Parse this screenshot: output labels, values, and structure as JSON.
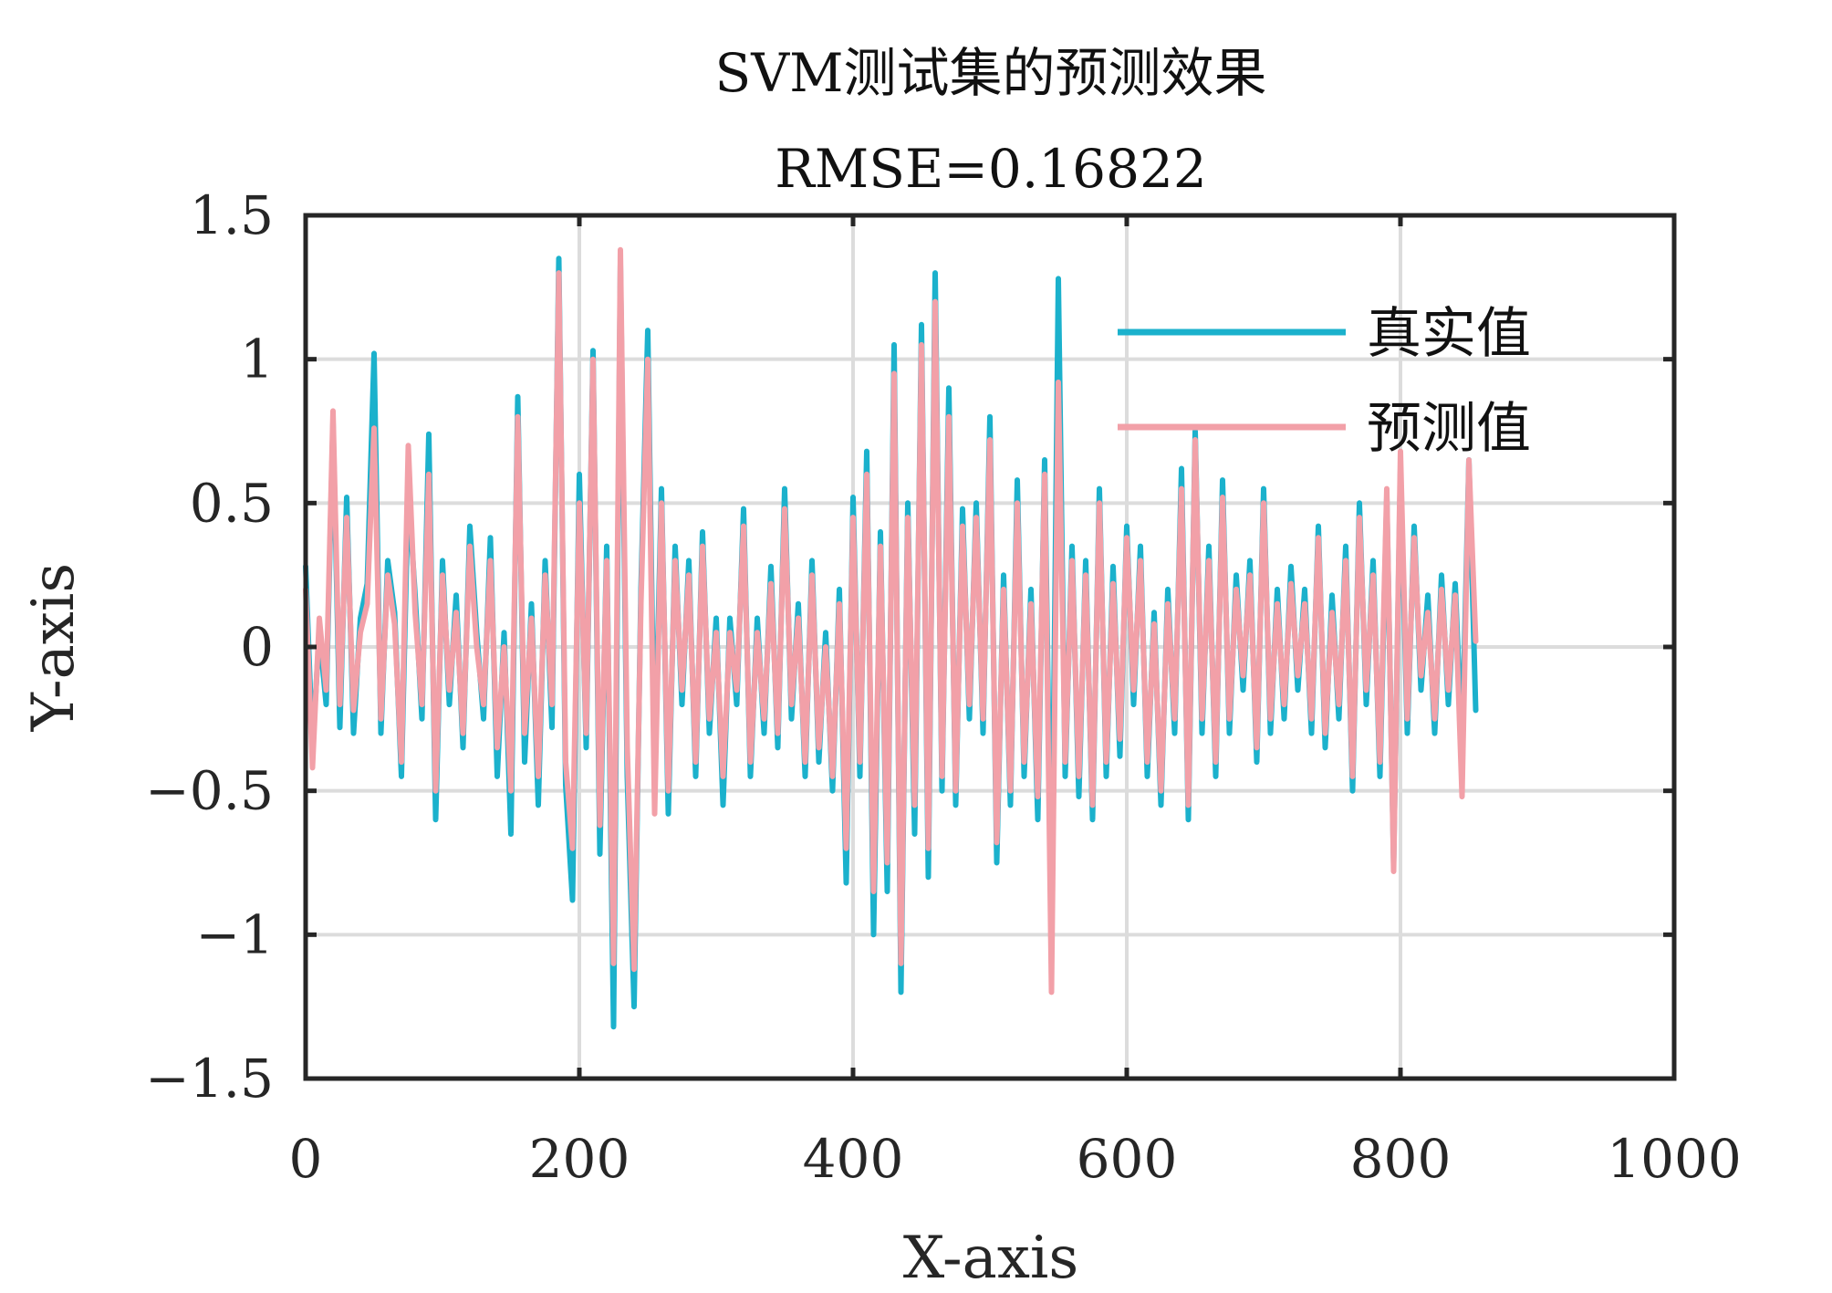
{
  "chart_data": {
    "type": "line",
    "title": "SVM测试集的预测效果",
    "subtitle": "RMSE=0.16822",
    "xlabel": "X-axis",
    "ylabel": "Y-axis",
    "xlim": [
      0,
      1000
    ],
    "ylim": [
      -1.5,
      1.5
    ],
    "grid": true,
    "legend_position": "top-right",
    "x_ticks": [
      0,
      200,
      400,
      600,
      800,
      1000
    ],
    "y_ticks": [
      -1.5,
      -1,
      -0.5,
      0,
      0.5,
      1,
      1.5
    ],
    "x_tick_labels": [
      "0",
      "200",
      "400",
      "600",
      "800",
      "1000"
    ],
    "y_tick_labels": [
      "−1.5",
      "−1",
      "−0.5",
      "0",
      "0.5",
      "1",
      "1.5"
    ],
    "series": [
      {
        "name": "真实值",
        "color": "#1bb1cc",
        "x": [
          0,
          5,
          10,
          15,
          20,
          25,
          30,
          35,
          40,
          45,
          50,
          55,
          60,
          65,
          70,
          75,
          80,
          85,
          90,
          95,
          100,
          105,
          110,
          115,
          120,
          125,
          130,
          135,
          140,
          145,
          150,
          155,
          160,
          165,
          170,
          175,
          180,
          185,
          190,
          195,
          200,
          205,
          210,
          215,
          220,
          225,
          230,
          235,
          240,
          245,
          250,
          255,
          260,
          265,
          270,
          275,
          280,
          285,
          290,
          295,
          300,
          305,
          310,
          315,
          320,
          325,
          330,
          335,
          340,
          345,
          350,
          355,
          360,
          365,
          370,
          375,
          380,
          385,
          390,
          395,
          400,
          405,
          410,
          415,
          420,
          425,
          430,
          435,
          440,
          445,
          450,
          455,
          460,
          465,
          470,
          475,
          480,
          485,
          490,
          495,
          500,
          505,
          510,
          515,
          520,
          525,
          530,
          535,
          540,
          545,
          550,
          555,
          560,
          565,
          570,
          575,
          580,
          585,
          590,
          595,
          600,
          605,
          610,
          615,
          620,
          625,
          630,
          635,
          640,
          645,
          650,
          655,
          660,
          665,
          670,
          675,
          680,
          685,
          690,
          695,
          700,
          705,
          710,
          715,
          720,
          725,
          730,
          735,
          740,
          745,
          750,
          755,
          760,
          765,
          770,
          775,
          780,
          785,
          790,
          795,
          800,
          805,
          810,
          815,
          820,
          825,
          830,
          835,
          840,
          845,
          850,
          855
        ],
        "values": [
          0.28,
          -0.35,
          0.05,
          -0.2,
          0.78,
          -0.28,
          0.52,
          -0.3,
          0.1,
          0.22,
          1.02,
          -0.3,
          0.3,
          0.12,
          -0.45,
          0.55,
          0.18,
          -0.25,
          0.74,
          -0.6,
          0.3,
          -0.2,
          0.18,
          -0.35,
          0.42,
          0.05,
          -0.25,
          0.38,
          -0.45,
          0.05,
          -0.65,
          0.87,
          -0.4,
          0.15,
          -0.55,
          0.3,
          -0.28,
          1.35,
          -0.48,
          -0.88,
          0.6,
          -0.35,
          1.03,
          -0.72,
          0.35,
          -1.32,
          1.33,
          -0.45,
          -1.25,
          0.2,
          1.1,
          -0.45,
          0.55,
          -0.58,
          0.35,
          -0.2,
          0.3,
          -0.45,
          0.4,
          -0.3,
          0.1,
          -0.55,
          0.1,
          -0.2,
          0.48,
          -0.45,
          0.1,
          -0.3,
          0.28,
          -0.35,
          0.55,
          -0.25,
          0.15,
          -0.45,
          0.3,
          -0.4,
          0.05,
          -0.5,
          0.2,
          -0.82,
          0.52,
          -0.45,
          0.68,
          -1.0,
          0.4,
          -0.85,
          1.05,
          -1.2,
          0.5,
          -0.65,
          1.12,
          -0.8,
          1.3,
          -0.5,
          0.9,
          -0.55,
          0.48,
          -0.25,
          0.5,
          -0.3,
          0.8,
          -0.75,
          0.25,
          -0.55,
          0.58,
          -0.45,
          0.2,
          -0.6,
          0.65,
          -0.95,
          1.28,
          -0.45,
          0.35,
          -0.52,
          0.3,
          -0.6,
          0.55,
          -0.45,
          0.28,
          -0.38,
          0.42,
          -0.2,
          0.35,
          -0.45,
          0.12,
          -0.55,
          0.2,
          -0.3,
          0.62,
          -0.6,
          0.75,
          -0.3,
          0.35,
          -0.45,
          0.58,
          -0.3,
          0.25,
          -0.15,
          0.3,
          -0.4,
          0.55,
          -0.3,
          0.2,
          -0.25,
          0.28,
          -0.15,
          0.2,
          -0.3,
          0.42,
          -0.35,
          0.18,
          -0.25,
          0.35,
          -0.5,
          0.5,
          -0.2,
          0.3,
          -0.45,
          0.52,
          -0.75,
          0.62,
          -0.3,
          0.42,
          -0.15,
          0.18,
          -0.3,
          0.25,
          -0.2,
          0.22,
          -0.35,
          0.65,
          -0.22
        ]
      },
      {
        "name": "预测值",
        "color": "#f2a0a8",
        "x": [
          0,
          5,
          10,
          15,
          20,
          25,
          30,
          35,
          40,
          45,
          50,
          55,
          60,
          65,
          70,
          75,
          80,
          85,
          90,
          95,
          100,
          105,
          110,
          115,
          120,
          125,
          130,
          135,
          140,
          145,
          150,
          155,
          160,
          165,
          170,
          175,
          180,
          185,
          190,
          195,
          200,
          205,
          210,
          215,
          220,
          225,
          230,
          235,
          240,
          245,
          250,
          255,
          260,
          265,
          270,
          275,
          280,
          285,
          290,
          295,
          300,
          305,
          310,
          315,
          320,
          325,
          330,
          335,
          340,
          345,
          350,
          355,
          360,
          365,
          370,
          375,
          380,
          385,
          390,
          395,
          400,
          405,
          410,
          415,
          420,
          425,
          430,
          435,
          440,
          445,
          450,
          455,
          460,
          465,
          470,
          475,
          480,
          485,
          490,
          495,
          500,
          505,
          510,
          515,
          520,
          525,
          530,
          535,
          540,
          545,
          550,
          555,
          560,
          565,
          570,
          575,
          580,
          585,
          590,
          595,
          600,
          605,
          610,
          615,
          620,
          625,
          630,
          635,
          640,
          645,
          650,
          655,
          660,
          665,
          670,
          675,
          680,
          685,
          690,
          695,
          700,
          705,
          710,
          715,
          720,
          725,
          730,
          735,
          740,
          745,
          750,
          755,
          760,
          765,
          770,
          775,
          780,
          785,
          790,
          795,
          800,
          805,
          810,
          815,
          820,
          825,
          830,
          835,
          840,
          845,
          850,
          855
        ],
        "values": [
          0.2,
          -0.42,
          0.1,
          -0.15,
          0.82,
          -0.2,
          0.45,
          -0.22,
          0.05,
          0.15,
          0.76,
          -0.25,
          0.25,
          0.08,
          -0.4,
          0.7,
          0.12,
          -0.2,
          0.6,
          -0.5,
          0.25,
          -0.15,
          0.12,
          -0.3,
          0.35,
          0.0,
          -0.2,
          0.3,
          -0.35,
          0.0,
          -0.5,
          0.8,
          -0.3,
          0.1,
          -0.45,
          0.25,
          -0.2,
          1.3,
          -0.4,
          -0.7,
          0.5,
          -0.3,
          1.0,
          -0.62,
          0.3,
          -1.1,
          1.38,
          -0.35,
          -1.12,
          0.15,
          1.0,
          -0.58,
          0.5,
          -0.5,
          0.3,
          -0.15,
          0.25,
          -0.4,
          0.35,
          -0.25,
          0.05,
          -0.45,
          0.05,
          -0.15,
          0.42,
          -0.4,
          0.05,
          -0.25,
          0.22,
          -0.3,
          0.48,
          -0.2,
          0.1,
          -0.4,
          0.25,
          -0.35,
          0.0,
          -0.45,
          0.15,
          -0.7,
          0.45,
          -0.4,
          0.6,
          -0.85,
          0.35,
          -0.75,
          0.95,
          -1.1,
          0.45,
          -0.55,
          1.05,
          -0.7,
          1.2,
          -0.45,
          0.8,
          -0.5,
          0.42,
          -0.2,
          0.45,
          -0.25,
          0.72,
          -0.68,
          0.2,
          -0.5,
          0.5,
          -0.4,
          0.15,
          -0.52,
          0.6,
          -1.2,
          0.92,
          -0.4,
          0.3,
          -0.45,
          0.25,
          -0.55,
          0.5,
          -0.4,
          0.22,
          -0.32,
          0.38,
          -0.15,
          0.3,
          -0.4,
          0.08,
          -0.5,
          0.15,
          -0.25,
          0.55,
          -0.55,
          0.72,
          -0.25,
          0.3,
          -0.4,
          0.52,
          -0.25,
          0.2,
          -0.1,
          0.25,
          -0.35,
          0.5,
          -0.25,
          0.15,
          -0.2,
          0.22,
          -0.1,
          0.15,
          -0.25,
          0.38,
          -0.3,
          0.12,
          -0.2,
          0.3,
          -0.45,
          0.45,
          -0.15,
          0.25,
          -0.4,
          0.55,
          -0.78,
          0.68,
          -0.25,
          0.38,
          -0.1,
          0.12,
          -0.25,
          0.2,
          -0.15,
          0.18,
          -0.52,
          0.65,
          0.02
        ]
      }
    ]
  }
}
